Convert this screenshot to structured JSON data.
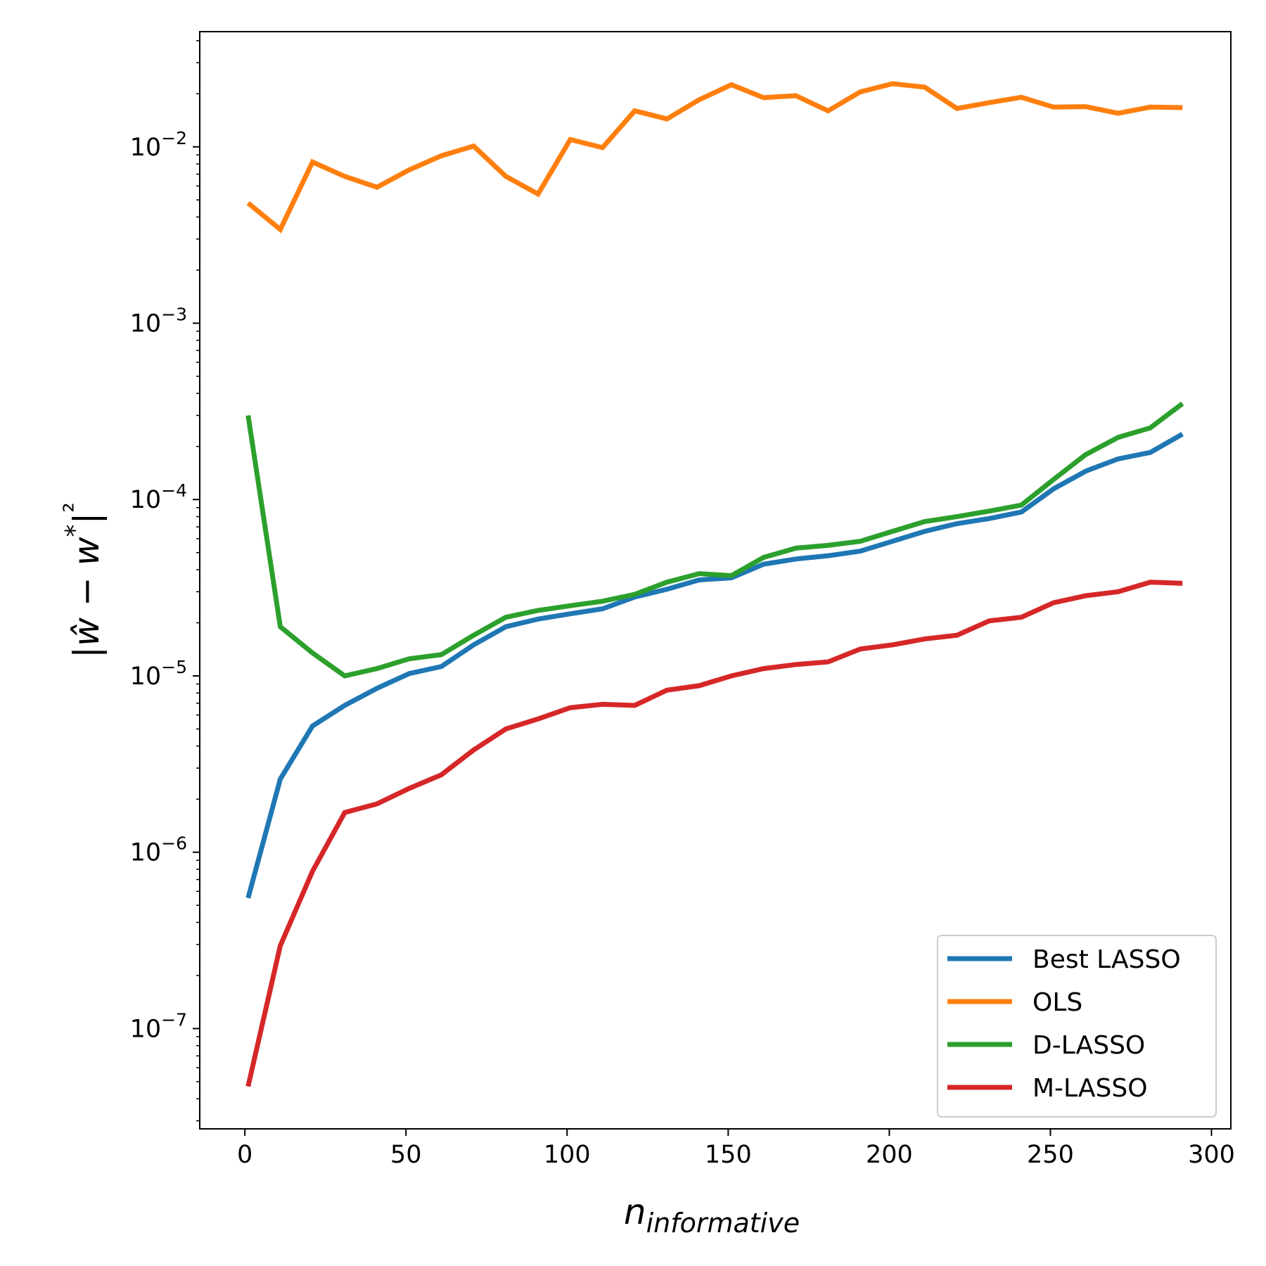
{
  "chart_data": {
    "type": "line",
    "title": "",
    "xlabel": "n",
    "xlabel_subscript": "informative",
    "ylabel": "|ŵ − w*|²",
    "x_scale": "linear",
    "y_scale": "log",
    "xlim": [
      -14,
      306
    ],
    "ylim": [
      2.7e-08,
      0.045
    ],
    "x_ticks": [
      0,
      50,
      100,
      150,
      200,
      250,
      300
    ],
    "y_ticks": [
      {
        "value": 1e-07,
        "base": "10",
        "exp": "−7"
      },
      {
        "value": 1e-06,
        "base": "10",
        "exp": "−6"
      },
      {
        "value": 1e-05,
        "base": "10",
        "exp": "−5"
      },
      {
        "value": 0.0001,
        "base": "10",
        "exp": "−4"
      },
      {
        "value": 0.001,
        "base": "10",
        "exp": "−3"
      },
      {
        "value": 0.01,
        "base": "10",
        "exp": "−2"
      }
    ],
    "grid": false,
    "legend_position": "lower-right",
    "x": [
      1,
      11,
      21,
      31,
      41,
      51,
      61,
      71,
      81,
      91,
      101,
      111,
      121,
      131,
      141,
      151,
      161,
      171,
      181,
      191,
      201,
      211,
      221,
      231,
      241,
      251,
      261,
      271,
      281,
      291
    ],
    "series": [
      {
        "name": "Best LASSO",
        "color": "#1f77b4",
        "values": [
          5.5e-07,
          2.6e-06,
          5.2e-06,
          6.8e-06,
          8.5e-06,
          1.03e-05,
          1.13e-05,
          1.5e-05,
          1.9e-05,
          2.1e-05,
          2.25e-05,
          2.4e-05,
          2.8e-05,
          3.1e-05,
          3.5e-05,
          3.6e-05,
          4.3e-05,
          4.6e-05,
          4.8e-05,
          5.1e-05,
          5.8e-05,
          6.6e-05,
          7.3e-05,
          7.8e-05,
          8.5e-05,
          0.000115,
          0.000145,
          0.00017,
          0.000185,
          0.000235
        ]
      },
      {
        "name": "OLS",
        "color": "#ff7f0e",
        "values": [
          0.0048,
          0.0034,
          0.0082,
          0.0068,
          0.0059,
          0.0074,
          0.0089,
          0.0101,
          0.0068,
          0.0054,
          0.011,
          0.0099,
          0.016,
          0.0144,
          0.0185,
          0.0225,
          0.019,
          0.0195,
          0.016,
          0.0205,
          0.0228,
          0.0218,
          0.0165,
          0.0178,
          0.0191,
          0.0168,
          0.0169,
          0.0155,
          0.0168,
          0.0167
        ]
      },
      {
        "name": "D-LASSO",
        "color": "#2ca02c",
        "values": [
          0.0003,
          1.9e-05,
          1.35e-05,
          1e-05,
          1.1e-05,
          1.25e-05,
          1.32e-05,
          1.7e-05,
          2.15e-05,
          2.35e-05,
          2.5e-05,
          2.65e-05,
          2.9e-05,
          3.4e-05,
          3.8e-05,
          3.7e-05,
          4.7e-05,
          5.3e-05,
          5.5e-05,
          5.8e-05,
          6.6e-05,
          7.5e-05,
          8e-05,
          8.6e-05,
          9.3e-05,
          0.00013,
          0.00018,
          0.000225,
          0.000255,
          0.00035
        ]
      },
      {
        "name": "M-LASSO",
        "color": "#d62728",
        "values": [
          4.7e-08,
          2.95e-07,
          7.8e-07,
          1.68e-06,
          1.88e-06,
          2.3e-06,
          2.75e-06,
          3.8e-06,
          5e-06,
          5.7e-06,
          6.6e-06,
          6.9e-06,
          6.8e-06,
          8.3e-06,
          8.8e-06,
          1e-05,
          1.1e-05,
          1.16e-05,
          1.2e-05,
          1.42e-05,
          1.5e-05,
          1.62e-05,
          1.7e-05,
          2.05e-05,
          2.15e-05,
          2.6e-05,
          2.85e-05,
          3e-05,
          3.4e-05,
          3.35e-05
        ]
      }
    ]
  }
}
